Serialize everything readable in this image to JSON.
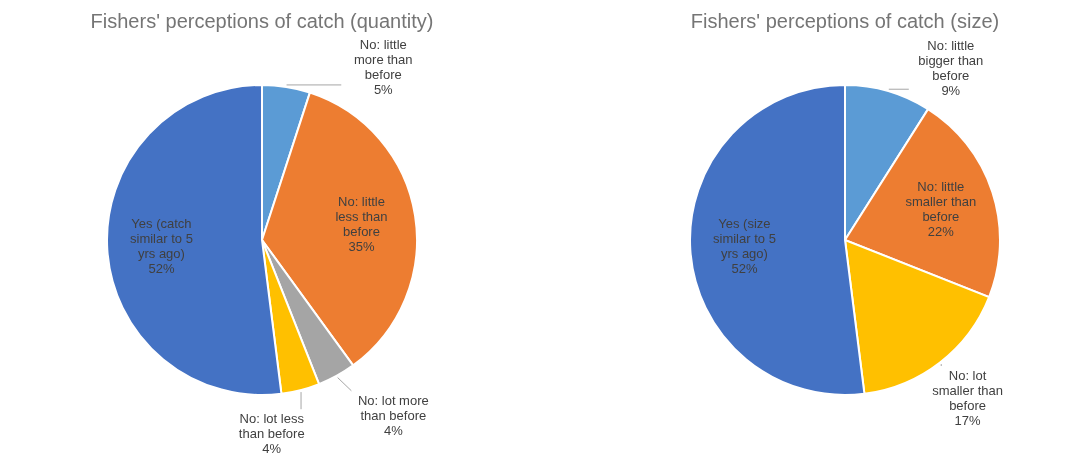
{
  "chart_data": [
    {
      "type": "pie",
      "title": "Fishers' perceptions of catch (quantity)",
      "categories": [
        "No: little more than before",
        "No: little less than before",
        "No: lot more than before",
        "No: lot less than before",
        "Yes (catch similar to 5 yrs ago)"
      ],
      "values": [
        5,
        35,
        4,
        4,
        52
      ],
      "value_labels": [
        "5%",
        "35%",
        "4%",
        "4%",
        "52%"
      ],
      "colors": [
        "#5b9bd5",
        "#ed7d31",
        "#a5a5a5",
        "#ffc000",
        "#4472c4"
      ]
    },
    {
      "type": "pie",
      "title": "Fishers' perceptions of catch (size)",
      "categories": [
        "No: little bigger than before",
        "No: little smaller than before",
        "No: lot smaller than before",
        "Yes (size similar to 5 yrs ago)"
      ],
      "values": [
        9,
        22,
        17,
        52
      ],
      "value_labels": [
        "9%",
        "22%",
        "17%",
        "52%"
      ],
      "colors": [
        "#5b9bd5",
        "#ed7d31",
        "#ffc000",
        "#4472c4"
      ]
    }
  ]
}
